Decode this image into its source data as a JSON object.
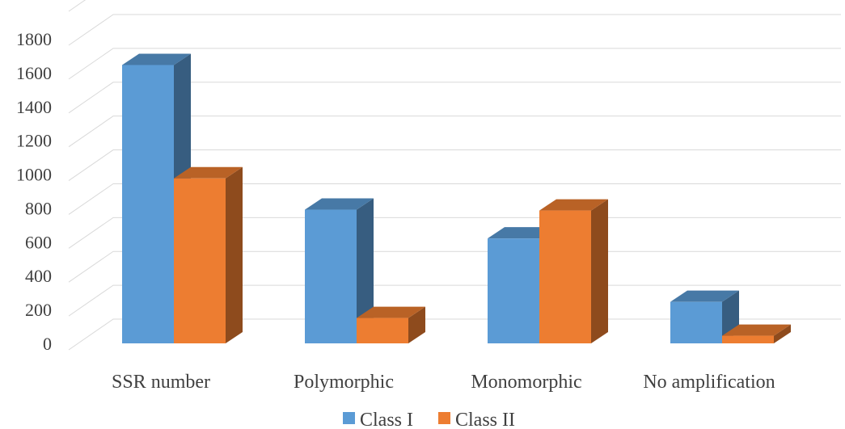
{
  "chart_data": {
    "type": "bar",
    "categories": [
      "SSR number",
      "Polymorphic",
      "Monomorphic",
      "No amplification"
    ],
    "series": [
      {
        "name": "Class I",
        "values": [
          1645,
          790,
          620,
          245
        ],
        "color": "#5b9bd5"
      },
      {
        "name": "Class II",
        "values": [
          975,
          150,
          785,
          45
        ],
        "color": "#ed7d31"
      }
    ],
    "y_ticks": [
      "0",
      "200",
      "400",
      "600",
      "800",
      "1000",
      "1200",
      "1400",
      "1600",
      "1800"
    ],
    "ylim": [
      0,
      1800
    ],
    "title": "",
    "xlabel": "",
    "ylabel": "",
    "grid": true,
    "legend_position": "bottom",
    "style": "3d-clustered-column"
  }
}
